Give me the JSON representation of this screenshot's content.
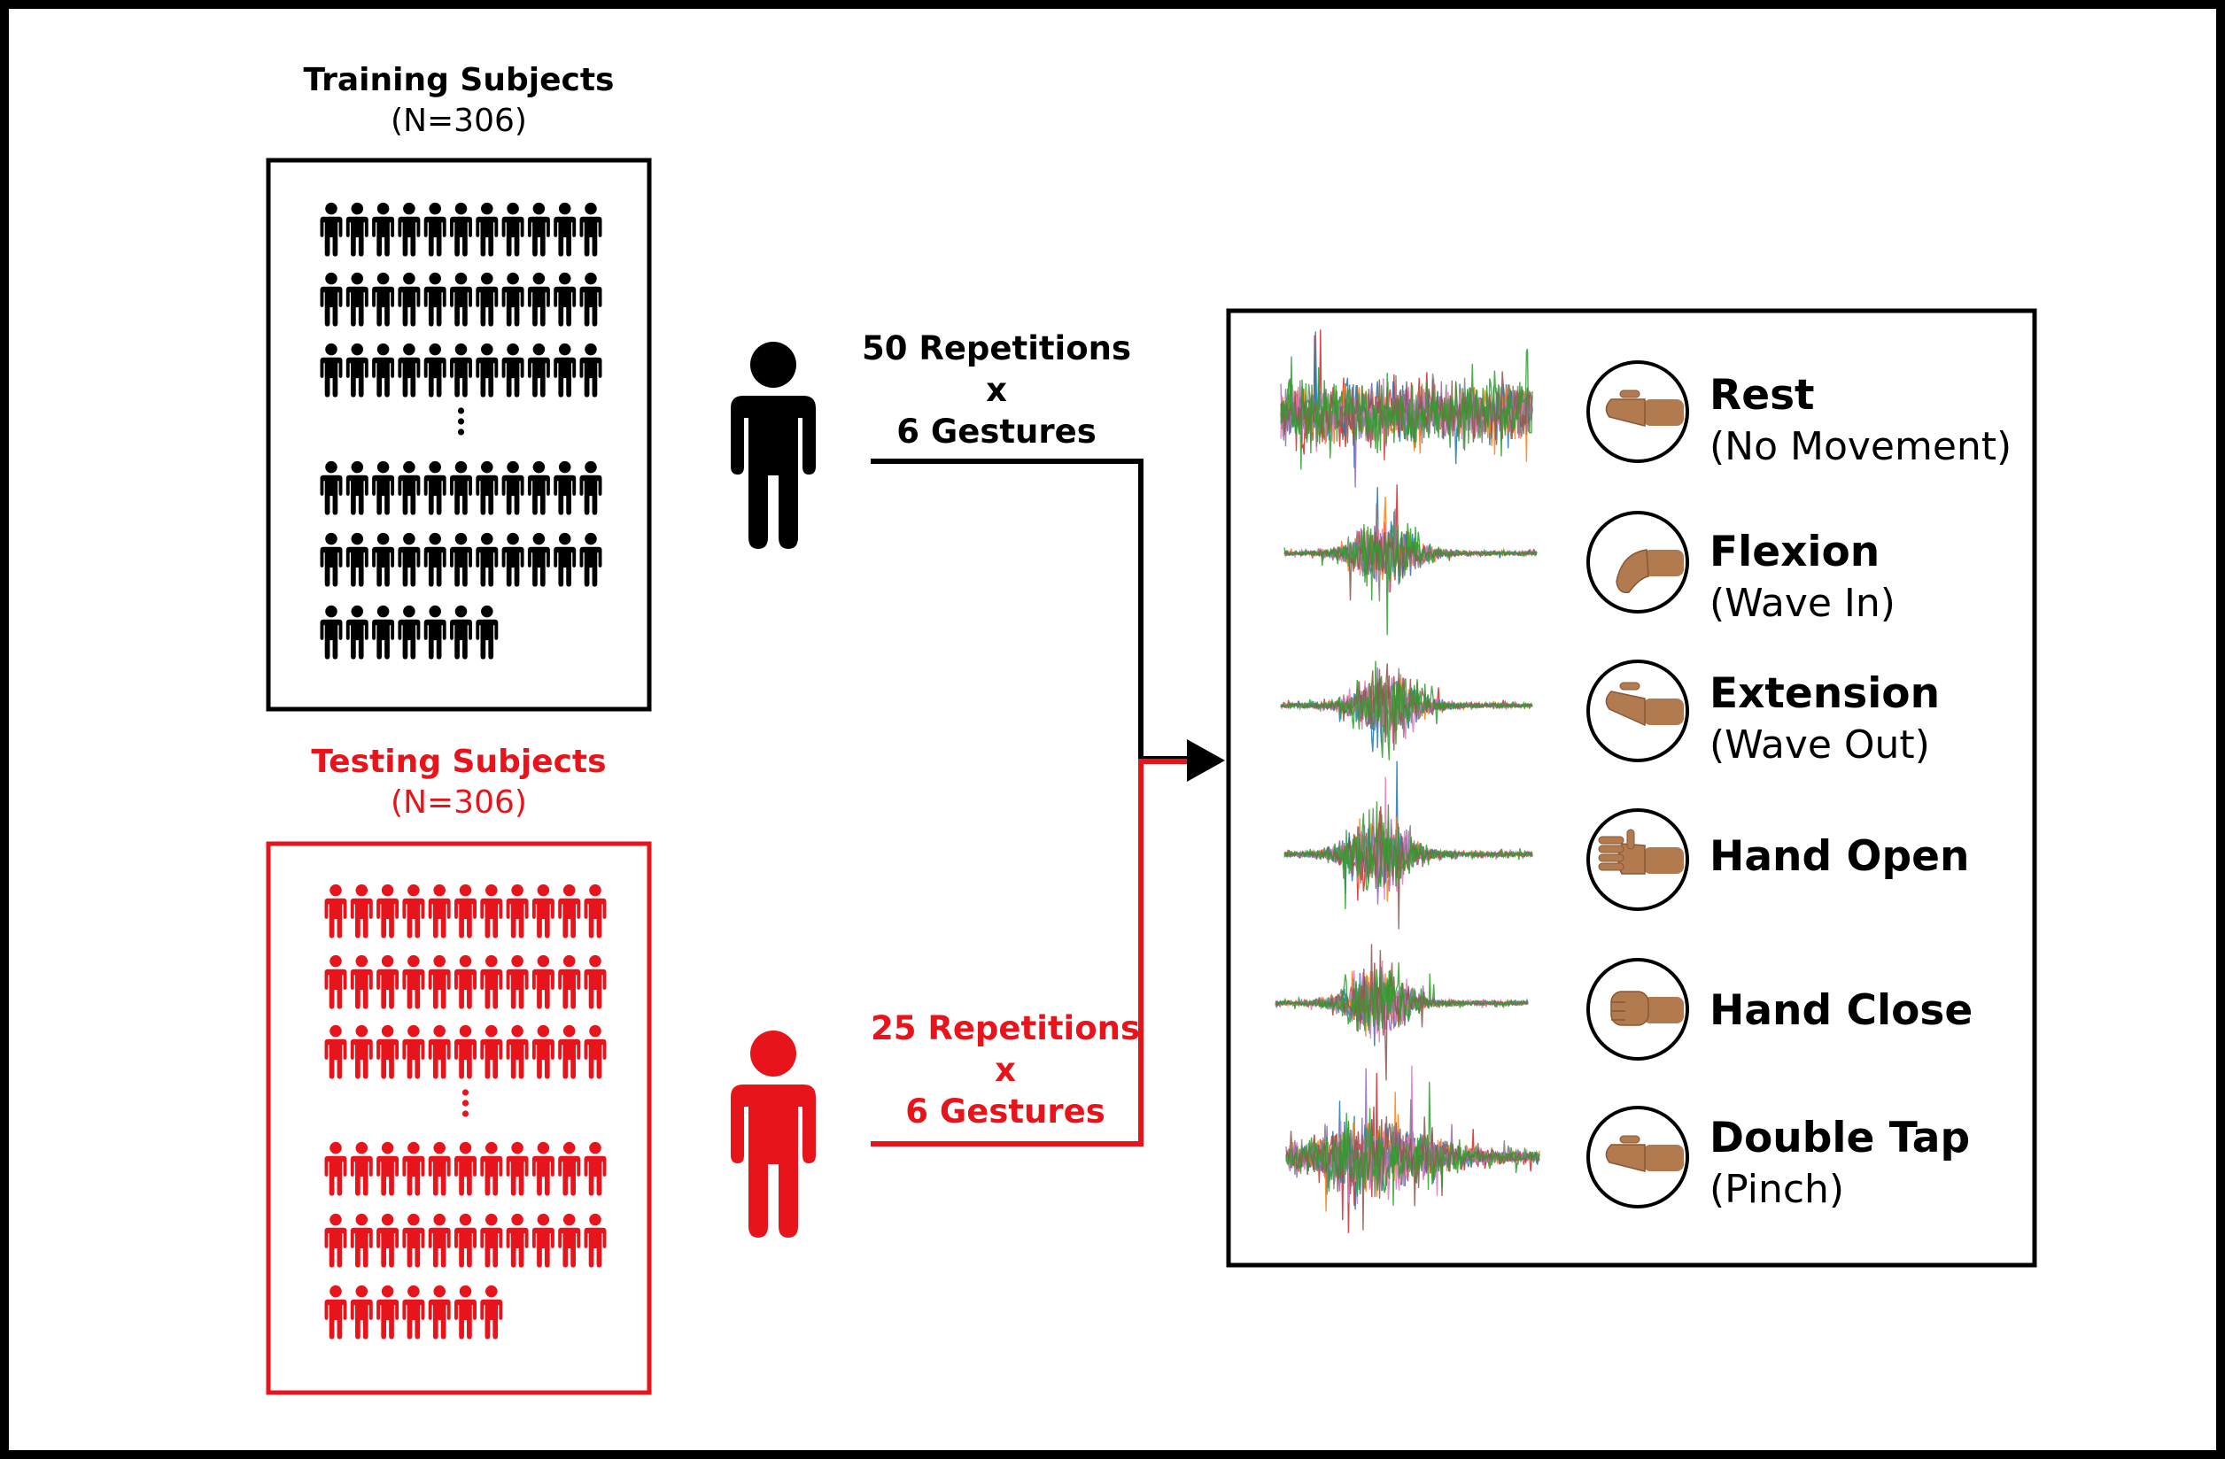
{
  "colors": {
    "train": "#000000",
    "test": "#e8141b",
    "frame": "#000000",
    "background": "#ffffff"
  },
  "icons": {
    "person": "person-icon",
    "ellipsis": "vertical-ellipsis-icon",
    "hand": "hand-gesture-icon",
    "signal": "emg-signal-icon",
    "arrow": "arrow-right-icon"
  },
  "training": {
    "title": "Training Subjects",
    "count_label": "(N=306)",
    "flow_reps": "50 Repetitions",
    "flow_times": "x",
    "flow_gestures": "6 Gestures"
  },
  "testing": {
    "title": "Testing Subjects",
    "count_label": "(N=306)",
    "flow_reps": "25 Repetitions",
    "flow_times": "x",
    "flow_gestures": "6 Gestures"
  },
  "gestures": [
    {
      "name": "Rest",
      "sub": "(No Movement)"
    },
    {
      "name": "Flexion",
      "sub": "(Wave In)"
    },
    {
      "name": "Extension",
      "sub": "(Wave Out)"
    },
    {
      "name": "Hand Open",
      "sub": ""
    },
    {
      "name": "Hand Close",
      "sub": ""
    },
    {
      "name": "Double Tap",
      "sub": "(Pinch)"
    }
  ],
  "signal_colors": [
    "#2ca02c",
    "#d62728",
    "#1f77b4",
    "#ff7f0e",
    "#9467bd",
    "#e377c2",
    "#7f7f7f",
    "#8c564b"
  ]
}
